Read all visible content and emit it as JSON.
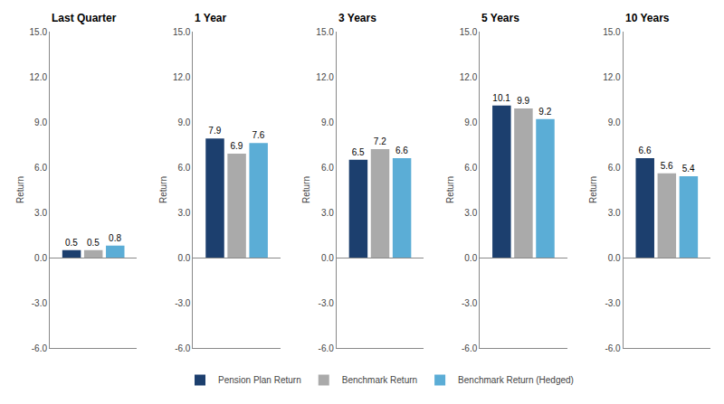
{
  "chart_data": [
    {
      "type": "bar",
      "title": "Last Quarter",
      "ylabel": "Return",
      "categories": [
        null
      ],
      "series": [
        {
          "name": "Pension Plan Return",
          "color": "#1c3f6e",
          "values": [
            0.5
          ]
        },
        {
          "name": "Benchmark Return",
          "color": "#aaaaaa",
          "values": [
            0.5
          ]
        },
        {
          "name": "Benchmark Return (Hedged)",
          "color": "#5badd6",
          "values": [
            0.8
          ]
        }
      ],
      "ylim": [
        -6.0,
        15.0
      ],
      "yticks": [
        {
          "value": -6.0,
          "label": "-6.0"
        },
        {
          "value": -3.0,
          "label": "-3.0"
        },
        {
          "value": 0.0,
          "label": "0.0"
        },
        {
          "value": 3.0,
          "label": "3.0"
        },
        {
          "value": 6.0,
          "label": "6.0"
        },
        {
          "value": 9.0,
          "label": "9.0"
        },
        {
          "value": 12.0,
          "label": "12.0"
        },
        {
          "value": 15.0,
          "label": "15.0"
        }
      ],
      "grid": false,
      "legend": "bottom",
      "data_labels": true
    },
    {
      "type": "bar",
      "title": "1 Year",
      "ylabel": "Return",
      "categories": [
        null
      ],
      "series": [
        {
          "name": "Pension Plan Return",
          "color": "#1c3f6e",
          "values": [
            7.9
          ]
        },
        {
          "name": "Benchmark Return",
          "color": "#aaaaaa",
          "values": [
            6.9
          ]
        },
        {
          "name": "Benchmark Return (Hedged)",
          "color": "#5badd6",
          "values": [
            7.6
          ]
        }
      ],
      "ylim": [
        -6.0,
        15.0
      ],
      "yticks": [
        {
          "value": -6.0,
          "label": "-6.0"
        },
        {
          "value": -3.0,
          "label": "-3.0"
        },
        {
          "value": 0.0,
          "label": "0.0"
        },
        {
          "value": 3.0,
          "label": "3.0"
        },
        {
          "value": 6.0,
          "label": "6.0"
        },
        {
          "value": 9.0,
          "label": "9.0"
        },
        {
          "value": 12.0,
          "label": "12.0"
        },
        {
          "value": 15.0,
          "label": "15.0"
        }
      ],
      "grid": false,
      "legend": "bottom",
      "data_labels": true
    },
    {
      "type": "bar",
      "title": "3 Years",
      "ylabel": "Return",
      "categories": [
        null
      ],
      "series": [
        {
          "name": "Pension Plan Return",
          "color": "#1c3f6e",
          "values": [
            6.5
          ]
        },
        {
          "name": "Benchmark Return",
          "color": "#aaaaaa",
          "values": [
            7.2
          ]
        },
        {
          "name": "Benchmark Return (Hedged)",
          "color": "#5badd6",
          "values": [
            6.6
          ]
        }
      ],
      "ylim": [
        -6.0,
        15.0
      ],
      "yticks": [
        {
          "value": -6.0,
          "label": "-6.0"
        },
        {
          "value": -3.0,
          "label": "-3.0"
        },
        {
          "value": 0.0,
          "label": "0.0"
        },
        {
          "value": 3.0,
          "label": "3.0"
        },
        {
          "value": 6.0,
          "label": "6.0"
        },
        {
          "value": 9.0,
          "label": "9.0"
        },
        {
          "value": 12.0,
          "label": "12.0"
        },
        {
          "value": 15.0,
          "label": "15.0"
        }
      ],
      "grid": false,
      "legend": "bottom",
      "data_labels": true
    },
    {
      "type": "bar",
      "title": "5 Years",
      "ylabel": "Return",
      "categories": [
        null
      ],
      "series": [
        {
          "name": "Pension Plan Return",
          "color": "#1c3f6e",
          "values": [
            10.1
          ]
        },
        {
          "name": "Benchmark Return",
          "color": "#aaaaaa",
          "values": [
            9.9
          ]
        },
        {
          "name": "Benchmark Return (Hedged)",
          "color": "#5badd6",
          "values": [
            9.2
          ]
        }
      ],
      "ylim": [
        -6.0,
        15.0
      ],
      "yticks": [
        {
          "value": -6.0,
          "label": "-6.0"
        },
        {
          "value": -3.0,
          "label": "-3.0"
        },
        {
          "value": 0.0,
          "label": "0.0"
        },
        {
          "value": 3.0,
          "label": "3.0"
        },
        {
          "value": 6.0,
          "label": "6.0"
        },
        {
          "value": 9.0,
          "label": "9.0"
        },
        {
          "value": 12.0,
          "label": "12.0"
        },
        {
          "value": 15.0,
          "label": "15.0"
        }
      ],
      "grid": false,
      "legend": "bottom",
      "data_labels": true
    },
    {
      "type": "bar",
      "title": "10 Years",
      "ylabel": "Return",
      "categories": [
        null
      ],
      "series": [
        {
          "name": "Pension Plan Return",
          "color": "#1c3f6e",
          "values": [
            6.6
          ]
        },
        {
          "name": "Benchmark Return",
          "color": "#aaaaaa",
          "values": [
            5.6
          ]
        },
        {
          "name": "Benchmark Return (Hedged)",
          "color": "#5badd6",
          "values": [
            5.4
          ]
        }
      ],
      "ylim": [
        -6.0,
        15.0
      ],
      "yticks": [
        {
          "value": -6.0,
          "label": "-6.0"
        },
        {
          "value": -3.0,
          "label": "-3.0"
        },
        {
          "value": 0.0,
          "label": "0.0"
        },
        {
          "value": 3.0,
          "label": "3.0"
        },
        {
          "value": 6.0,
          "label": "6.0"
        },
        {
          "value": 9.0,
          "label": "9.0"
        },
        {
          "value": 12.0,
          "label": "12.0"
        },
        {
          "value": 15.0,
          "label": "15.0"
        }
      ],
      "grid": false,
      "legend": "bottom",
      "data_labels": true
    }
  ]
}
